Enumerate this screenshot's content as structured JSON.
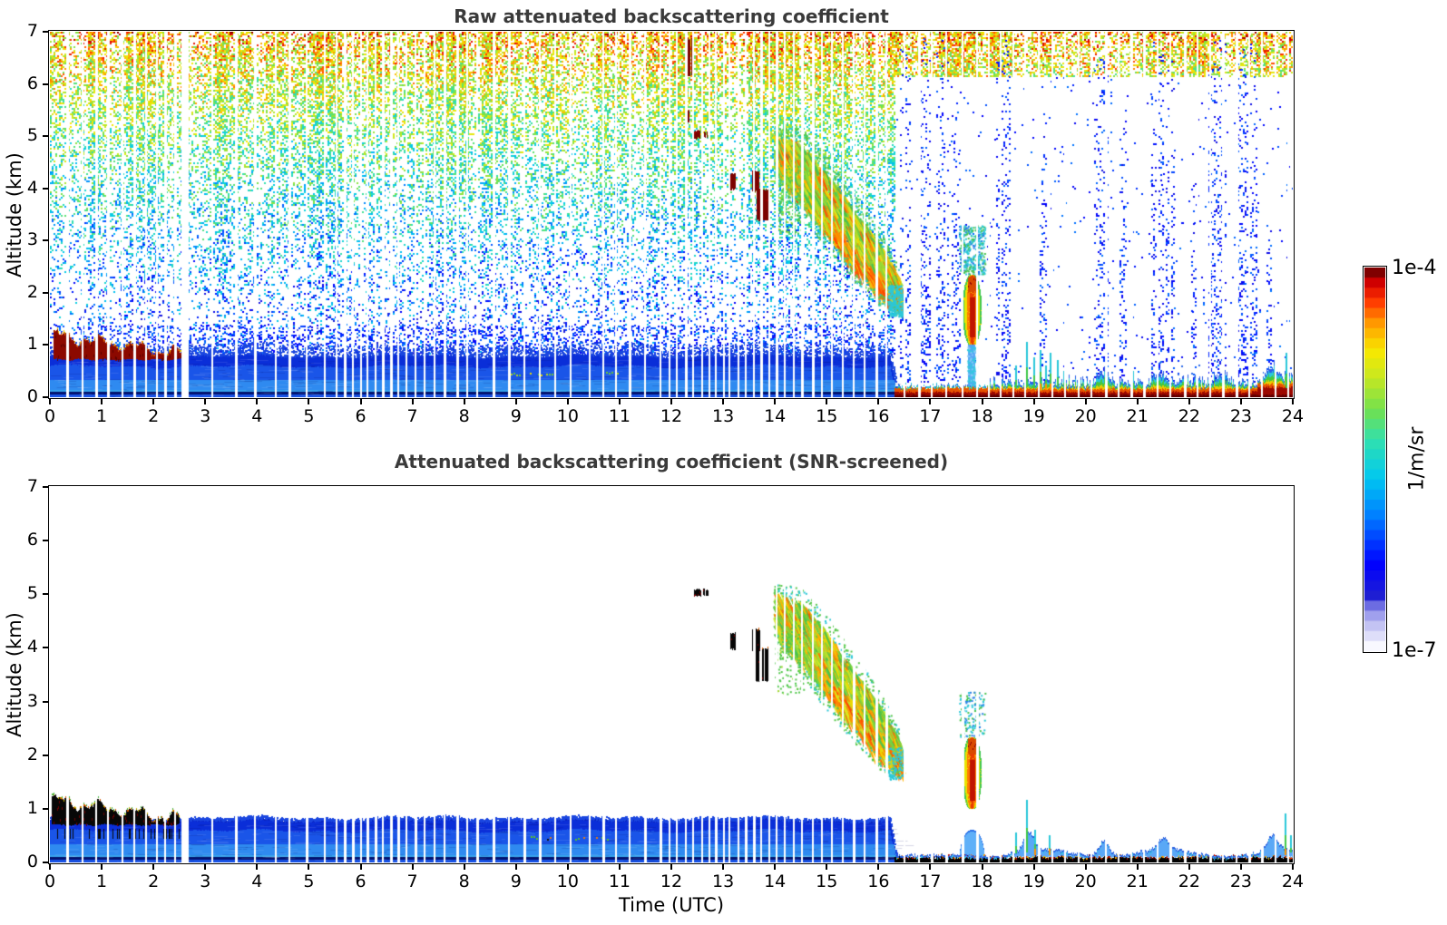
{
  "figure": {
    "background": "#ffffff",
    "title_color": "#3a3a3a"
  },
  "chart_data": {
    "type": "heatmap",
    "x": {
      "label": "Time (UTC)",
      "range": [
        0,
        24
      ],
      "unit": "hours",
      "ticks": [
        0,
        1,
        2,
        3,
        4,
        5,
        6,
        7,
        8,
        9,
        10,
        11,
        12,
        13,
        14,
        15,
        16,
        17,
        18,
        19,
        20,
        21,
        22,
        23,
        24
      ]
    },
    "y": {
      "label": "Altitude (km)",
      "range": [
        0,
        7
      ],
      "unit": "km",
      "ticks": [
        0,
        1,
        2,
        3,
        4,
        5,
        6,
        7
      ]
    },
    "color": {
      "min": 1e-07,
      "max": 0.0001,
      "scale": "log",
      "min_label": "1e-7",
      "max_label": "1e-4",
      "unit": "1/m/sr",
      "palette": "jet_with_white_floor",
      "steps": 38,
      "palette_stops": [
        [
          0,
          "#f8f8ff"
        ],
        [
          0.05,
          "#c8c8f4"
        ],
        [
          0.1,
          "#8888e8"
        ],
        [
          0.13,
          "#2020d0"
        ],
        [
          0.22,
          "#0000ff"
        ],
        [
          0.35,
          "#0080ff"
        ],
        [
          0.45,
          "#00c8f0"
        ],
        [
          0.55,
          "#30e0b0"
        ],
        [
          0.63,
          "#70e050"
        ],
        [
          0.72,
          "#c8e820"
        ],
        [
          0.79,
          "#f8e800"
        ],
        [
          0.86,
          "#ffa000"
        ],
        [
          0.92,
          "#ff3c00"
        ],
        [
          0.97,
          "#d80000"
        ],
        [
          1,
          "#800000"
        ]
      ]
    },
    "data_gap": [
      2.55,
      2.68
    ],
    "dropout_times": [
      0.33,
      0.62,
      0.88,
      1.12,
      1.4,
      1.62,
      1.85,
      2.05,
      2.22,
      2.4,
      3.12,
      3.58,
      3.95,
      4.35,
      4.62,
      4.95,
      5.3,
      5.52,
      5.68,
      5.85,
      6.0,
      6.12,
      6.28,
      6.42,
      6.58,
      6.72,
      6.88,
      7.05,
      7.22,
      7.42,
      7.62,
      7.85,
      8.05,
      8.25,
      8.55,
      8.85,
      9.15,
      9.45,
      9.75,
      10.05,
      10.42,
      10.68,
      10.92,
      11.18,
      11.48,
      11.78,
      11.95,
      12.1,
      12.28,
      12.42,
      12.58,
      12.72,
      12.85,
      13.0,
      13.12,
      13.28,
      13.42,
      13.58,
      13.72,
      13.88,
      14.02,
      14.18,
      14.35,
      14.52,
      14.72,
      14.9,
      15.1,
      15.3,
      15.52,
      15.72,
      15.95,
      16.15
    ],
    "surface_dropout_times": [
      16.5,
      16.78,
      17.02,
      17.3,
      17.62,
      17.9,
      18.12,
      18.35,
      18.6,
      18.82,
      19.08,
      19.35,
      19.6,
      19.85,
      20.1,
      20.38,
      20.62,
      20.88,
      21.12,
      21.38,
      21.62,
      21.9,
      22.15,
      22.4,
      22.65,
      22.9,
      23.15,
      23.4,
      23.65,
      23.9
    ],
    "panels": [
      {
        "id": "raw",
        "title": "Raw attenuated backscattering coefficient",
        "noise": {
          "t": [
            0,
            16.32
          ],
          "z_min": 0.84
        },
        "noise_top_band": {
          "t": [
            16.32,
            24
          ],
          "z": [
            6.15,
            7
          ]
        },
        "sparse_dots": {
          "t": [
            16.32,
            24
          ],
          "z": [
            0.4,
            6.15
          ],
          "density": 0.012
        },
        "noise_columns": [
          [
            16.42,
            16.62,
            6.8
          ],
          [
            16.78,
            17.0,
            6.9
          ],
          [
            17.12,
            17.34,
            6.9
          ],
          [
            17.42,
            17.58,
            5.5
          ],
          [
            18.28,
            18.52,
            6.9
          ],
          [
            19.12,
            19.22,
            5.0
          ],
          [
            20.18,
            20.42,
            6.5
          ],
          [
            20.62,
            20.78,
            5.5
          ],
          [
            21.28,
            21.5,
            6.9
          ],
          [
            21.55,
            21.72,
            6.5
          ],
          [
            22.05,
            22.12,
            4.5
          ],
          [
            22.38,
            22.72,
            6.9
          ],
          [
            22.9,
            23.3,
            6.9
          ],
          [
            23.5,
            23.58,
            3.5
          ]
        ],
        "boundary_layer": {
          "t": [
            0,
            16.36
          ],
          "top": 0.78,
          "fringe": 0.28
        },
        "aerosol_layer": {
          "t": [
            0.08,
            2.53
          ],
          "base": 0.72,
          "top_start": 1.18,
          "top_end": 0.82,
          "style": "darkred"
        },
        "inlayer_dots": {
          "segments": [
            [
              8.8,
              9.75
            ],
            [
              10.7,
              11.1
            ]
          ],
          "z": 0.45,
          "style": "green"
        },
        "clouds": {
          "style": "darkred",
          "items": [
            [
              12.42,
              12.56,
              4.96,
              5.1
            ],
            [
              12.6,
              12.7,
              4.98,
              5.08
            ],
            [
              13.14,
              13.24,
              3.97,
              4.27
            ],
            [
              13.56,
              13.72,
              3.95,
              4.33
            ],
            [
              13.63,
              13.88,
              3.38,
              3.97
            ],
            [
              12.33,
              12.41,
              6.15,
              6.85
            ],
            [
              12.28,
              12.34,
              5.25,
              5.48
            ]
          ]
        },
        "descending_band": {
          "path": [
            [
              13.98,
              4.68
            ],
            [
              14.5,
              4.32
            ],
            [
              15.0,
              3.72
            ],
            [
              15.5,
              3.08
            ],
            [
              16.0,
              2.5
            ],
            [
              16.38,
              2.05
            ]
          ],
          "halfwidth": [
            0.35,
            0.55,
            0.6,
            0.55,
            0.5,
            0.3
          ],
          "fibers": 2400,
          "speckle": 500,
          "cluster": 320,
          "tip": 260
        },
        "rain_column": {
          "t": [
            17.6,
            18.0
          ],
          "z_core": [
            1.0,
            2.35
          ],
          "z_below": [
            0.12,
            1.0
          ],
          "halo_top": 3.3,
          "halo": 380,
          "below_style": "column"
        },
        "surface_layer": {
          "t": [
            16.32,
            24
          ],
          "style": "red",
          "low_top_until": 18.1,
          "spikes": [
            [
              18.64,
              0.6
            ],
            [
              18.86,
              1.05
            ],
            [
              19.0,
              0.75
            ],
            [
              19.12,
              0.9
            ],
            [
              19.22,
              0.6
            ],
            [
              19.32,
              0.85
            ],
            [
              19.46,
              0.7
            ],
            [
              19.58,
              0.5
            ],
            [
              20.9,
              0.5
            ],
            [
              23.87,
              0.85
            ]
          ],
          "bumps": [
            [
              20.35,
              0.32
            ],
            [
              21.45,
              0.2
            ],
            [
              22.6,
              0.18
            ],
            [
              23.6,
              0.25
            ]
          ]
        }
      },
      {
        "id": "screened",
        "title": "Attenuated backscattering coefficient (SNR-screened)",
        "boundary_layer": {
          "t": [
            0,
            16.36
          ],
          "top": 0.78,
          "fringe": 0.07
        },
        "aerosol_layer": {
          "t": [
            0.05,
            2.5
          ],
          "base": 0.7,
          "top_start": 1.15,
          "top_end": 0.8,
          "style": "black"
        },
        "inlayer_dots": {
          "segments": [
            [
              9.3,
              9.75
            ],
            [
              10.05,
              10.35
            ],
            [
              10.55,
              10.8
            ]
          ],
          "z": 0.45,
          "style": "mixed"
        },
        "clouds": {
          "style": "black",
          "items": [
            [
              12.42,
              12.58,
              4.97,
              5.09
            ],
            [
              12.6,
              12.72,
              4.98,
              5.08
            ],
            [
              13.14,
              13.24,
              3.97,
              4.27
            ],
            [
              13.56,
              13.72,
              3.95,
              4.33
            ],
            [
              13.63,
              13.88,
              3.38,
              3.97
            ]
          ]
        },
        "descending_band": {
          "path": [
            [
              13.98,
              4.68
            ],
            [
              14.5,
              4.32
            ],
            [
              15.0,
              3.72
            ],
            [
              15.5,
              3.08
            ],
            [
              16.0,
              2.5
            ],
            [
              16.38,
              2.05
            ]
          ],
          "halfwidth": [
            0.35,
            0.55,
            0.6,
            0.55,
            0.5,
            0.3
          ],
          "fibers": 1900,
          "speckle": 380,
          "cluster": 260,
          "tip": 120
        },
        "rain_column": {
          "t": [
            17.6,
            18.0
          ],
          "z_core": [
            1.0,
            2.35
          ],
          "z_below": [
            0.12,
            1.0
          ],
          "halo_top": 3.2,
          "halo": 150,
          "below_style": "dome"
        },
        "surface_layer": {
          "t": [
            16.32,
            24
          ],
          "style": "black",
          "spikes": [
            [
              18.64,
              0.55
            ],
            [
              18.86,
              1.15
            ],
            [
              19.02,
              0.6
            ],
            [
              19.3,
              0.5
            ],
            [
              23.85,
              0.9
            ],
            [
              23.95,
              0.5
            ]
          ],
          "bumps": [
            [
              18.9,
              0.35
            ],
            [
              20.35,
              0.3
            ],
            [
              21.5,
              0.22
            ],
            [
              23.6,
              0.28
            ]
          ]
        }
      }
    ]
  }
}
